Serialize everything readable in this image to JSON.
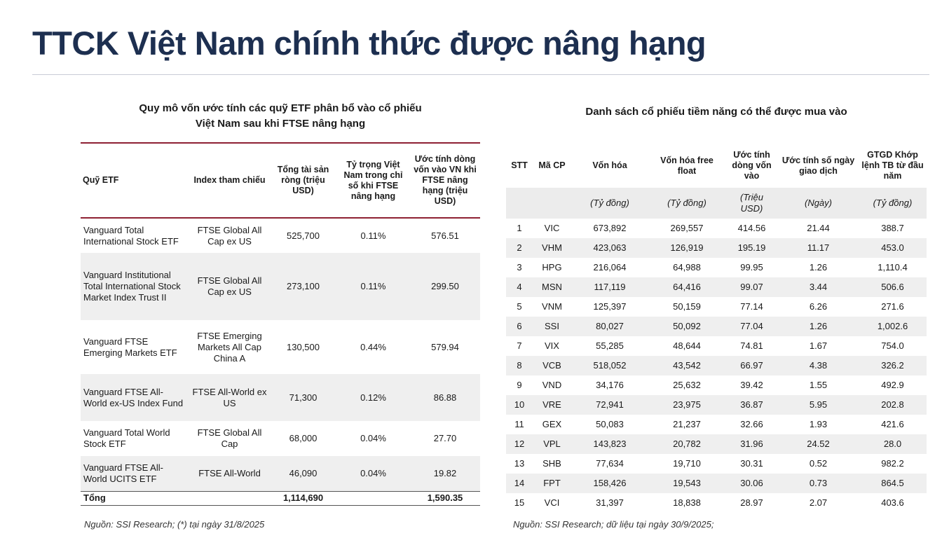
{
  "header": {
    "title": "TTCK Việt Nam chính thức được nâng hạng"
  },
  "left_table": {
    "title": [
      "Quy mô vốn ước tính các quỹ ETF phân bổ vào cổ phiếu",
      "Việt Nam sau khi FTSE nâng hạng"
    ],
    "columns": [
      "Quỹ ETF",
      "Index tham chiếu",
      "Tổng tài sản ròng (triệu USD)",
      "Tỷ trọng Việt Nam trong chỉ số khi FTSE nâng hạng",
      "Ước tính dòng vốn vào VN khi FTSE nâng hạng (triệu USD)"
    ],
    "rows": [
      [
        "Vanguard Total International Stock ETF",
        "FTSE Global All Cap ex US",
        "525,700",
        "0.11%",
        "576.51"
      ],
      [
        "Vanguard Institutional Total International Stock Market Index Trust II",
        "FTSE Global All Cap ex US",
        "273,100",
        "0.11%",
        "299.50"
      ],
      [
        "Vanguard FTSE Emerging Markets ETF",
        "FTSE Emerging Markets All Cap China A",
        "130,500",
        "0.44%",
        "579.94"
      ],
      [
        "Vanguard FTSE All-World ex-US Index Fund",
        "FTSE All-World ex US",
        "71,300",
        "0.12%",
        "86.88"
      ],
      [
        "Vanguard Total World Stock ETF",
        "FTSE Global All Cap",
        "68,000",
        "0.04%",
        "27.70"
      ],
      [
        "Vanguard FTSE All-World UCITS ETF",
        "FTSE All-World",
        "46,090",
        "0.04%",
        "19.82"
      ]
    ],
    "total": {
      "label": "Tổng",
      "total_assets": "1,114,690",
      "flow": "1,590.35"
    },
    "source": "Nguồn: SSI Research; (*) tại ngày 31/8/2025"
  },
  "right_table": {
    "title": "Danh sách cổ phiếu tiềm năng có thể được mua vào",
    "columns": [
      "STT",
      "Mã CP",
      "Vốn hóa",
      "Vốn hóa free float",
      "Ước tính dòng vốn vào",
      "Ước tính số ngày giao dịch",
      "GTGD Khớp lệnh TB từ đầu năm"
    ],
    "units": [
      "(Tỷ đồng)",
      "(Tỷ đồng)",
      "(Triệu USD)",
      "(Ngày)",
      "(Tỷ đồng)"
    ],
    "rows": [
      [
        "1",
        "VIC",
        "673,892",
        "269,557",
        "414.56",
        "21.44",
        "388.7"
      ],
      [
        "2",
        "VHM",
        "423,063",
        "126,919",
        "195.19",
        "11.17",
        "453.0"
      ],
      [
        "3",
        "HPG",
        "216,064",
        "64,988",
        "99.95",
        "1.26",
        "1,110.4"
      ],
      [
        "4",
        "MSN",
        "117,119",
        "64,416",
        "99.07",
        "3.44",
        "506.6"
      ],
      [
        "5",
        "VNM",
        "125,397",
        "50,159",
        "77.14",
        "6.26",
        "271.6"
      ],
      [
        "6",
        "SSI",
        "80,027",
        "50,092",
        "77.04",
        "1.26",
        "1,002.6"
      ],
      [
        "7",
        "VIX",
        "55,285",
        "48,644",
        "74.81",
        "1.67",
        "754.0"
      ],
      [
        "8",
        "VCB",
        "518,052",
        "43,542",
        "66.97",
        "4.38",
        "326.2"
      ],
      [
        "9",
        "VND",
        "34,176",
        "25,632",
        "39.42",
        "1.55",
        "492.9"
      ],
      [
        "10",
        "VRE",
        "72,941",
        "23,975",
        "36.87",
        "5.95",
        "202.8"
      ],
      [
        "11",
        "GEX",
        "50,083",
        "21,237",
        "32.66",
        "1.93",
        "421.6"
      ],
      [
        "12",
        "VPL",
        "143,823",
        "20,782",
        "31.96",
        "24.52",
        "28.0"
      ],
      [
        "13",
        "SHB",
        "77,634",
        "19,710",
        "30.31",
        "0.52",
        "982.2"
      ],
      [
        "14",
        "FPT",
        "158,426",
        "19,543",
        "30.06",
        "0.73",
        "864.5"
      ],
      [
        "15",
        "VCI",
        "31,397",
        "18,838",
        "28.97",
        "2.07",
        "403.6"
      ]
    ],
    "source": "Nguồn: SSI Research; dữ liệu tại ngày 30/9/2025;"
  }
}
